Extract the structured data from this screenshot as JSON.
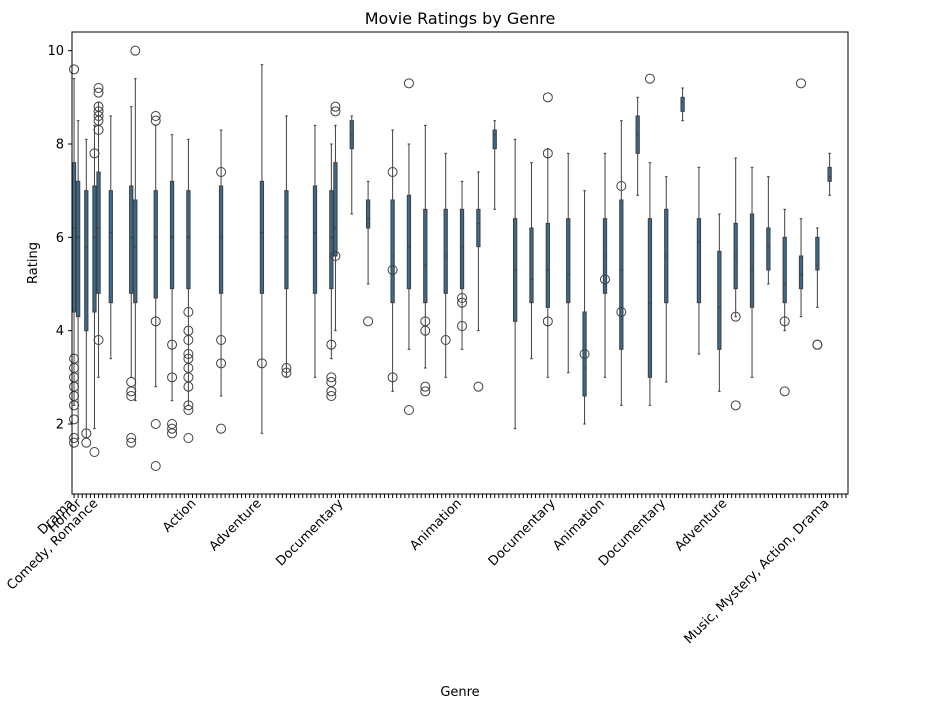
{
  "chart_data": {
    "type": "box",
    "title": "Movie Ratings by Genre",
    "xlabel": "Genre",
    "ylabel": "Rating",
    "ylim": [
      0.5,
      10.4
    ],
    "yticks": [
      2,
      4,
      6,
      8,
      10
    ],
    "grid": false,
    "legend": "none",
    "box_color": "#3b6a8f",
    "line_color": "#3f3f3f",
    "n_categories": 190,
    "readable_category_labels": [
      {
        "index": 0,
        "label": "Drama"
      },
      {
        "index": 2,
        "label": "Horror"
      },
      {
        "index": 6,
        "label": "Comedy, Romance"
      },
      {
        "index": 30,
        "label": "Action"
      },
      {
        "index": 46,
        "label": "Adventure"
      },
      {
        "index": 66,
        "label": "Documentary"
      },
      {
        "index": 95,
        "label": "Animation"
      },
      {
        "index": 118,
        "label": "Documentary"
      },
      {
        "index": 130,
        "label": "Animation"
      },
      {
        "index": 145,
        "label": "Documentary"
      },
      {
        "index": 160,
        "label": "Adventure"
      },
      {
        "index": 185,
        "label": "Music, Mystery, Action, Drama"
      }
    ],
    "boxes": [
      {
        "index": 0,
        "whislo": 2.4,
        "q1": 4.4,
        "med": 6.2,
        "q3": 7.6,
        "whishi": 9.4,
        "fliers": [
          1.6,
          1.7,
          2.1,
          2.4,
          2.6,
          2.8,
          3.0,
          3.2,
          3.4,
          9.6
        ]
      },
      {
        "index": 1,
        "whislo": 1.7,
        "q1": 4.3,
        "med": 6.0,
        "q3": 7.2,
        "whishi": 8.5,
        "fliers": []
      },
      {
        "index": 3,
        "whislo": 1.7,
        "q1": 4.0,
        "med": 5.8,
        "q3": 7.0,
        "whishi": 8.1,
        "fliers": [
          1.8,
          1.6
        ]
      },
      {
        "index": 5,
        "whislo": 1.9,
        "q1": 4.4,
        "med": 6.0,
        "q3": 7.1,
        "whishi": 8.4,
        "fliers": [
          7.8,
          1.4
        ]
      },
      {
        "index": 6,
        "whislo": 3.0,
        "q1": 4.8,
        "med": 6.2,
        "q3": 7.4,
        "whishi": 8.9,
        "fliers": [
          9.2,
          9.1,
          8.8,
          8.7,
          8.6,
          8.5,
          8.3,
          3.8
        ]
      },
      {
        "index": 9,
        "whislo": 3.4,
        "q1": 4.6,
        "med": 6.1,
        "q3": 7.0,
        "whishi": 8.6,
        "fliers": []
      },
      {
        "index": 14,
        "whislo": 3.0,
        "q1": 4.8,
        "med": 6.0,
        "q3": 7.1,
        "whishi": 8.8,
        "fliers": [
          2.7,
          2.6,
          2.9,
          1.7,
          1.6
        ]
      },
      {
        "index": 15,
        "whislo": 2.5,
        "q1": 4.6,
        "med": 5.8,
        "q3": 6.8,
        "whishi": 9.4,
        "fliers": [
          10.0
        ]
      },
      {
        "index": 20,
        "whislo": 2.8,
        "q1": 4.7,
        "med": 6.0,
        "q3": 7.0,
        "whishi": 8.4,
        "fliers": [
          8.6,
          8.5,
          4.2,
          2.0,
          1.1
        ]
      },
      {
        "index": 24,
        "whislo": 2.5,
        "q1": 4.9,
        "med": 6.0,
        "q3": 7.2,
        "whishi": 8.2,
        "fliers": [
          3.7,
          3.0,
          1.8,
          2.0,
          1.9
        ]
      },
      {
        "index": 28,
        "whislo": 2.4,
        "q1": 4.9,
        "med": 6.0,
        "q3": 7.0,
        "whishi": 8.1,
        "fliers": [
          4.4,
          4.0,
          3.8,
          3.5,
          3.4,
          3.2,
          2.8,
          2.4,
          2.3,
          1.7,
          3.0
        ]
      },
      {
        "index": 36,
        "whislo": 2.6,
        "q1": 4.8,
        "med": 6.0,
        "q3": 7.1,
        "whishi": 8.3,
        "fliers": [
          3.8,
          3.3,
          1.9,
          7.4
        ]
      },
      {
        "index": 46,
        "whislo": 1.8,
        "q1": 4.8,
        "med": 6.1,
        "q3": 7.2,
        "whishi": 9.7,
        "fliers": [
          3.3
        ]
      },
      {
        "index": 52,
        "whislo": 3.0,
        "q1": 4.9,
        "med": 6.0,
        "q3": 7.0,
        "whishi": 8.6,
        "fliers": [
          3.2,
          3.1
        ]
      },
      {
        "index": 59,
        "whislo": 3.0,
        "q1": 4.8,
        "med": 6.1,
        "q3": 7.1,
        "whishi": 8.4,
        "fliers": []
      },
      {
        "index": 63,
        "whislo": 3.4,
        "q1": 4.9,
        "med": 6.0,
        "q3": 7.0,
        "whishi": 8.0,
        "fliers": [
          3.7,
          3.0,
          2.6,
          2.9,
          2.7
        ]
      },
      {
        "index": 64,
        "whislo": 4.0,
        "q1": 5.6,
        "med": 6.2,
        "q3": 7.6,
        "whishi": 8.4,
        "fliers": [
          8.8,
          8.7,
          5.6
        ]
      },
      {
        "index": 68,
        "whislo": 6.5,
        "q1": 7.9,
        "med": 8.2,
        "q3": 8.5,
        "whishi": 8.6,
        "fliers": []
      },
      {
        "index": 72,
        "whislo": 5.0,
        "q1": 6.2,
        "med": 6.4,
        "q3": 6.8,
        "whishi": 7.2,
        "fliers": [
          4.2
        ]
      },
      {
        "index": 78,
        "whislo": 2.7,
        "q1": 4.6,
        "med": 5.6,
        "q3": 6.8,
        "whishi": 8.3,
        "fliers": [
          7.4,
          5.3,
          3.0
        ]
      },
      {
        "index": 82,
        "whislo": 3.6,
        "q1": 4.9,
        "med": 5.8,
        "q3": 6.9,
        "whishi": 8.0,
        "fliers": [
          9.3,
          2.3
        ]
      },
      {
        "index": 86,
        "whislo": 3.2,
        "q1": 4.6,
        "med": 5.4,
        "q3": 6.6,
        "whishi": 8.4,
        "fliers": [
          4.0,
          2.8,
          2.7,
          4.2
        ]
      },
      {
        "index": 91,
        "whislo": 3.0,
        "q1": 4.8,
        "med": 5.6,
        "q3": 6.6,
        "whishi": 7.8,
        "fliers": [
          3.8
        ]
      },
      {
        "index": 95,
        "whislo": 3.6,
        "q1": 4.9,
        "med": 5.8,
        "q3": 6.6,
        "whishi": 7.2,
        "fliers": [
          4.7,
          4.6,
          4.1
        ]
      },
      {
        "index": 99,
        "whislo": 4.0,
        "q1": 5.8,
        "med": 6.3,
        "q3": 6.6,
        "whishi": 7.4,
        "fliers": [
          2.8
        ]
      },
      {
        "index": 103,
        "whislo": 6.6,
        "q1": 7.9,
        "med": 8.2,
        "q3": 8.3,
        "whishi": 8.5,
        "fliers": []
      },
      {
        "index": 108,
        "whislo": 1.9,
        "q1": 4.2,
        "med": 5.3,
        "q3": 6.4,
        "whishi": 8.1,
        "fliers": []
      },
      {
        "index": 112,
        "whislo": 3.4,
        "q1": 4.6,
        "med": 5.1,
        "q3": 6.2,
        "whishi": 7.6,
        "fliers": []
      },
      {
        "index": 116,
        "whislo": 3.0,
        "q1": 4.5,
        "med": 5.3,
        "q3": 6.3,
        "whishi": 7.9,
        "fliers": [
          4.2,
          7.8,
          9.0
        ]
      },
      {
        "index": 121,
        "whislo": 3.1,
        "q1": 4.6,
        "med": 5.2,
        "q3": 6.4,
        "whishi": 7.8,
        "fliers": []
      },
      {
        "index": 125,
        "whislo": 2.0,
        "q1": 2.6,
        "med": 3.2,
        "q3": 4.4,
        "whishi": 7.0,
        "fliers": [
          3.5
        ]
      },
      {
        "index": 130,
        "whislo": 3.0,
        "q1": 4.8,
        "med": 5.6,
        "q3": 6.4,
        "whishi": 7.8,
        "fliers": [
          5.1
        ]
      },
      {
        "index": 134,
        "whislo": 2.4,
        "q1": 3.6,
        "med": 5.3,
        "q3": 6.8,
        "whishi": 8.5,
        "fliers": [
          7.1,
          4.4
        ]
      },
      {
        "index": 138,
        "whislo": 6.9,
        "q1": 7.8,
        "med": 8.2,
        "q3": 8.6,
        "whishi": 9.0,
        "fliers": []
      },
      {
        "index": 141,
        "whislo": 2.4,
        "q1": 3.0,
        "med": 4.6,
        "q3": 6.4,
        "whishi": 7.6,
        "fliers": [
          9.4
        ]
      },
      {
        "index": 145,
        "whislo": 2.9,
        "q1": 4.6,
        "med": 5.6,
        "q3": 6.6,
        "whishi": 7.3,
        "fliers": []
      },
      {
        "index": 149,
        "whislo": 8.5,
        "q1": 8.7,
        "med": 8.9,
        "q3": 9.0,
        "whishi": 9.2,
        "fliers": []
      },
      {
        "index": 153,
        "whislo": 3.5,
        "q1": 4.6,
        "med": 5.9,
        "q3": 6.4,
        "whishi": 7.5,
        "fliers": []
      },
      {
        "index": 158,
        "whislo": 2.7,
        "q1": 3.6,
        "med": 4.5,
        "q3": 5.7,
        "whishi": 6.5,
        "fliers": []
      },
      {
        "index": 162,
        "whislo": 4.3,
        "q1": 4.9,
        "med": 5.6,
        "q3": 6.3,
        "whishi": 7.7,
        "fliers": [
          4.3,
          2.4
        ]
      },
      {
        "index": 166,
        "whislo": 3.0,
        "q1": 4.5,
        "med": 5.3,
        "q3": 6.5,
        "whishi": 7.5,
        "fliers": []
      },
      {
        "index": 170,
        "whislo": 5.0,
        "q1": 5.3,
        "med": 5.8,
        "q3": 6.2,
        "whishi": 7.3,
        "fliers": []
      },
      {
        "index": 174,
        "whislo": 4.0,
        "q1": 4.6,
        "med": 5.0,
        "q3": 6.0,
        "whishi": 6.6,
        "fliers": [
          4.2,
          2.7
        ]
      },
      {
        "index": 178,
        "whislo": 4.3,
        "q1": 4.9,
        "med": 5.2,
        "q3": 5.6,
        "whishi": 6.4,
        "fliers": [
          9.3
        ]
      },
      {
        "index": 182,
        "whislo": 4.5,
        "q1": 5.3,
        "med": 5.4,
        "q3": 6.0,
        "whishi": 6.2,
        "fliers": [
          3.7,
          3.7
        ]
      },
      {
        "index": 185,
        "whislo": 6.9,
        "q1": 7.2,
        "med": 7.3,
        "q3": 7.5,
        "whishi": 7.8,
        "fliers": []
      }
    ]
  }
}
